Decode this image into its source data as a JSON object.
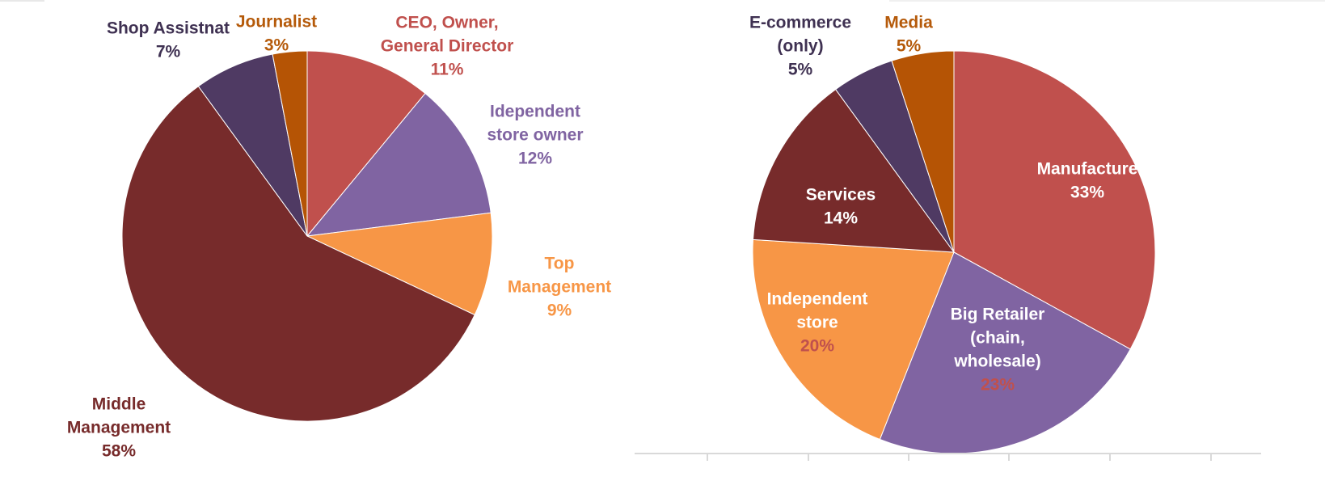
{
  "chart_data": [
    {
      "type": "pie",
      "title": "",
      "slices": [
        {
          "label": [
            "CEO, Owner,",
            "General Director"
          ],
          "value_label": "11%",
          "value": 11,
          "color": "#C0504D",
          "label_color": "#C0504D"
        },
        {
          "label": [
            "Idependent",
            "store owner"
          ],
          "value_label": "12%",
          "value": 12,
          "color": "#8064A2",
          "label_color": "#8064A2"
        },
        {
          "label": [
            "Top",
            "Management"
          ],
          "value_label": "9%",
          "value": 9,
          "color": "#F79646",
          "label_color": "#F79646"
        },
        {
          "label": [
            "Middle",
            "Management"
          ],
          "value_label": "58%",
          "value": 58,
          "color": "#772B2B",
          "label_color": "#772B2B"
        },
        {
          "label": [
            "Shop Assistnat"
          ],
          "value_label": "7%",
          "value": 7,
          "color": "#4F3A63",
          "label_color": "#3F3152"
        },
        {
          "label": [
            "Journalist"
          ],
          "value_label": "3%",
          "value": 3,
          "color": "#B55405",
          "label_color": "#B55A0A"
        }
      ]
    },
    {
      "type": "pie",
      "title": "",
      "slices": [
        {
          "label": [
            "Manufacture"
          ],
          "value_label": "33%",
          "value": 33,
          "color": "#C0504D",
          "label_color": "#FFFFFF",
          "value_color": "#FFFFFF"
        },
        {
          "label": [
            "Big Retailer",
            "(chain,",
            "wholesale)"
          ],
          "value_label": "23%",
          "value": 23,
          "color": "#8064A2",
          "label_color": "#FFFFFF",
          "value_color": "#C0504D"
        },
        {
          "label": [
            "Independent",
            "store"
          ],
          "value_label": "20%",
          "value": 20,
          "color": "#F79646",
          "label_color": "#FFFFFF",
          "value_color": "#C0504D"
        },
        {
          "label": [
            "Services"
          ],
          "value_label": "14%",
          "value": 14,
          "color": "#772B2B",
          "label_color": "#FFFFFF",
          "value_color": "#FFFFFF"
        },
        {
          "label": [
            "E-commerce",
            "(only)"
          ],
          "value_label": "5%",
          "value": 5,
          "color": "#4F3A63",
          "label_color": "#3F3152",
          "value_color": "#3F3152"
        },
        {
          "label": [
            "Media"
          ],
          "value_label": "5%",
          "value": 5,
          "color": "#B55405",
          "label_color": "#B55A0A",
          "value_color": "#B55A0A"
        }
      ]
    }
  ]
}
